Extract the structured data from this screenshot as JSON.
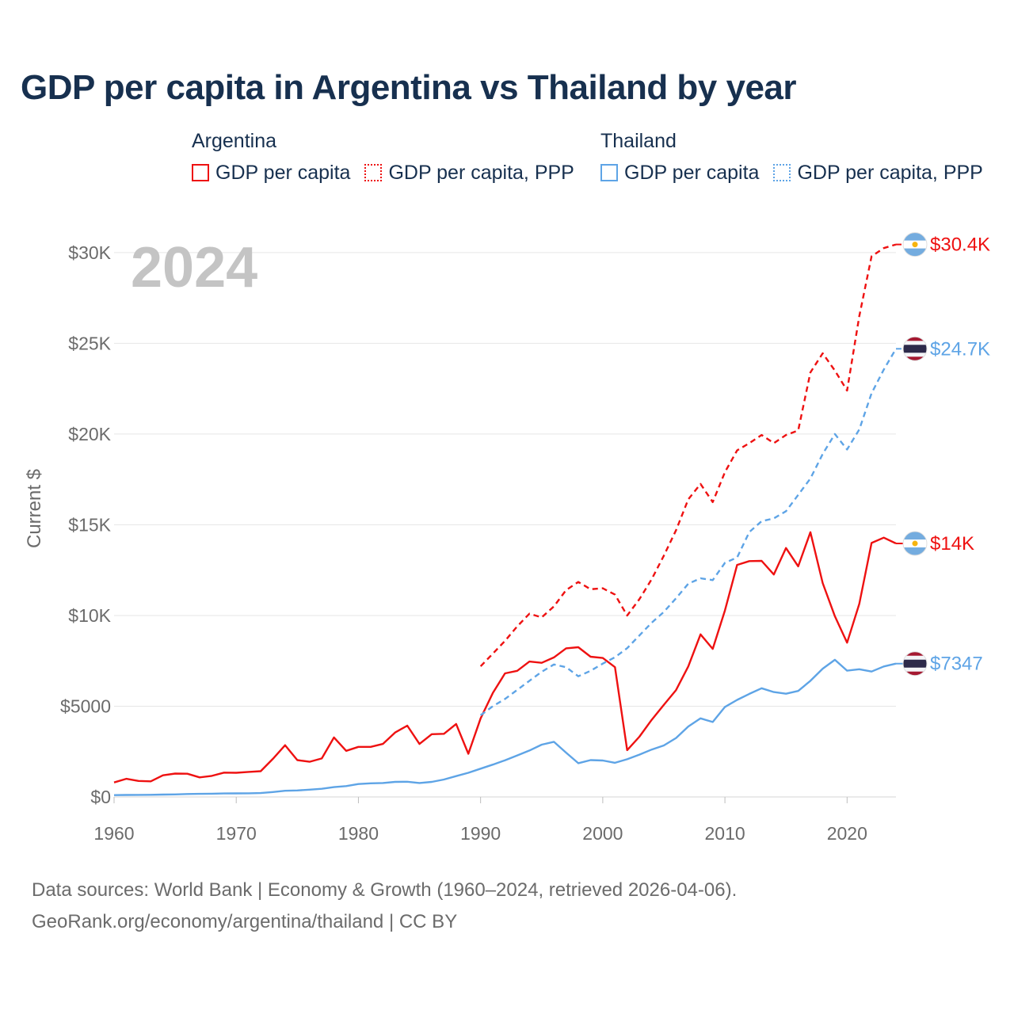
{
  "title": "GDP per capita in Argentina vs Thailand by year",
  "legend": {
    "groups": [
      {
        "country": "Argentina",
        "color": "#ee1111",
        "items": [
          {
            "label": "GDP per capita",
            "style": "solid"
          },
          {
            "label": "GDP per capita, PPP",
            "style": "dotted"
          }
        ]
      },
      {
        "country": "Thailand",
        "color": "#5ea4e6",
        "items": [
          {
            "label": "GDP per capita",
            "style": "solid"
          },
          {
            "label": "GDP per capita, PPP",
            "style": "dotted"
          }
        ]
      }
    ]
  },
  "year_label": "2024",
  "sources": {
    "line1": "Data sources: World Bank | Economy & Growth (1960–2024, retrieved 2026-04-06).",
    "line2": "GeoRank.org/economy/argentina/thailand | CC BY"
  },
  "chart_data": {
    "type": "line",
    "title": "GDP per capita in Argentina vs Thailand by year",
    "xlabel": "",
    "ylabel": "Current $",
    "xlim": [
      1960,
      2024
    ],
    "ylim": [
      0,
      31000
    ],
    "x_ticks": [
      1960,
      1970,
      1980,
      1990,
      2000,
      2010,
      2020
    ],
    "y_ticks": [
      {
        "value": 0,
        "label": "$0"
      },
      {
        "value": 5000,
        "label": "$5000"
      },
      {
        "value": 10000,
        "label": "$10K"
      },
      {
        "value": 15000,
        "label": "$15K"
      },
      {
        "value": 20000,
        "label": "$20K"
      },
      {
        "value": 25000,
        "label": "$25K"
      },
      {
        "value": 30000,
        "label": "$30K"
      }
    ],
    "grid": true,
    "series": [
      {
        "name": "Argentina GDP per capita",
        "country": "Argentina",
        "style": "solid",
        "color": "#ee1111",
        "end_label": "$14K",
        "flag": "argentina",
        "start_year": 1960,
        "values": [
          800,
          1000,
          880,
          860,
          1190,
          1290,
          1280,
          1080,
          1160,
          1340,
          1330,
          1380,
          1420,
          2100,
          2850,
          2030,
          1940,
          2120,
          3280,
          2540,
          2760,
          2760,
          2920,
          3550,
          3930,
          2920,
          3460,
          3480,
          4020,
          2380,
          4330,
          5730,
          6810,
          6950,
          7460,
          7390,
          7690,
          8190,
          8250,
          7730,
          7660,
          7150,
          2580,
          3320,
          4250,
          5080,
          5890,
          7190,
          8960,
          8160,
          10280,
          12790,
          13000,
          13010,
          12260,
          13720,
          12710,
          14590,
          11790,
          9960,
          8500,
          10640,
          14000,
          14290,
          13970
        ]
      },
      {
        "name": "Argentina GDP per capita, PPP",
        "country": "Argentina",
        "style": "dashed",
        "color": "#ee1111",
        "end_label": "$30.4K",
        "flag": "argentina",
        "start_year": 1990,
        "values": [
          7200,
          7900,
          8600,
          9400,
          10100,
          9900,
          10500,
          11400,
          11850,
          11450,
          11500,
          11150,
          10000,
          10900,
          12000,
          13300,
          14700,
          16400,
          17250,
          16250,
          17900,
          19100,
          19500,
          19950,
          19500,
          19950,
          20200,
          23400,
          24450,
          23500,
          22400,
          26500,
          29800,
          30250,
          30450
        ]
      },
      {
        "name": "Thailand GDP per capita",
        "country": "Thailand",
        "style": "solid",
        "color": "#5ea4e6",
        "end_label": "$7347",
        "flag": "thailand",
        "start_year": 1960,
        "values": [
          100,
          110,
          115,
          120,
          130,
          140,
          160,
          170,
          180,
          190,
          195,
          200,
          215,
          270,
          340,
          360,
          400,
          450,
          540,
          600,
          710,
          750,
          770,
          830,
          840,
          770,
          830,
          960,
          1150,
          1330,
          1560,
          1780,
          2020,
          2290,
          2560,
          2880,
          3040,
          2440,
          1860,
          2030,
          2010,
          1880,
          2080,
          2330,
          2610,
          2840,
          3250,
          3880,
          4330,
          4130,
          4960,
          5350,
          5680,
          5990,
          5780,
          5690,
          5840,
          6400,
          7070,
          7560,
          6960,
          7040,
          6910,
          7190,
          7347
        ]
      },
      {
        "name": "Thailand GDP per capita, PPP",
        "country": "Thailand",
        "style": "dashed",
        "color": "#5ea4e6",
        "end_label": "$24.7K",
        "flag": "thailand",
        "start_year": 1990,
        "values": [
          4500,
          5000,
          5400,
          5900,
          6400,
          6900,
          7300,
          7150,
          6650,
          6950,
          7350,
          7700,
          8200,
          8900,
          9600,
          10200,
          10950,
          11750,
          12050,
          11950,
          12900,
          13200,
          14600,
          15200,
          15350,
          15750,
          16650,
          17550,
          18900,
          20000,
          19150,
          20250,
          22250,
          23550,
          24700
        ]
      }
    ]
  }
}
